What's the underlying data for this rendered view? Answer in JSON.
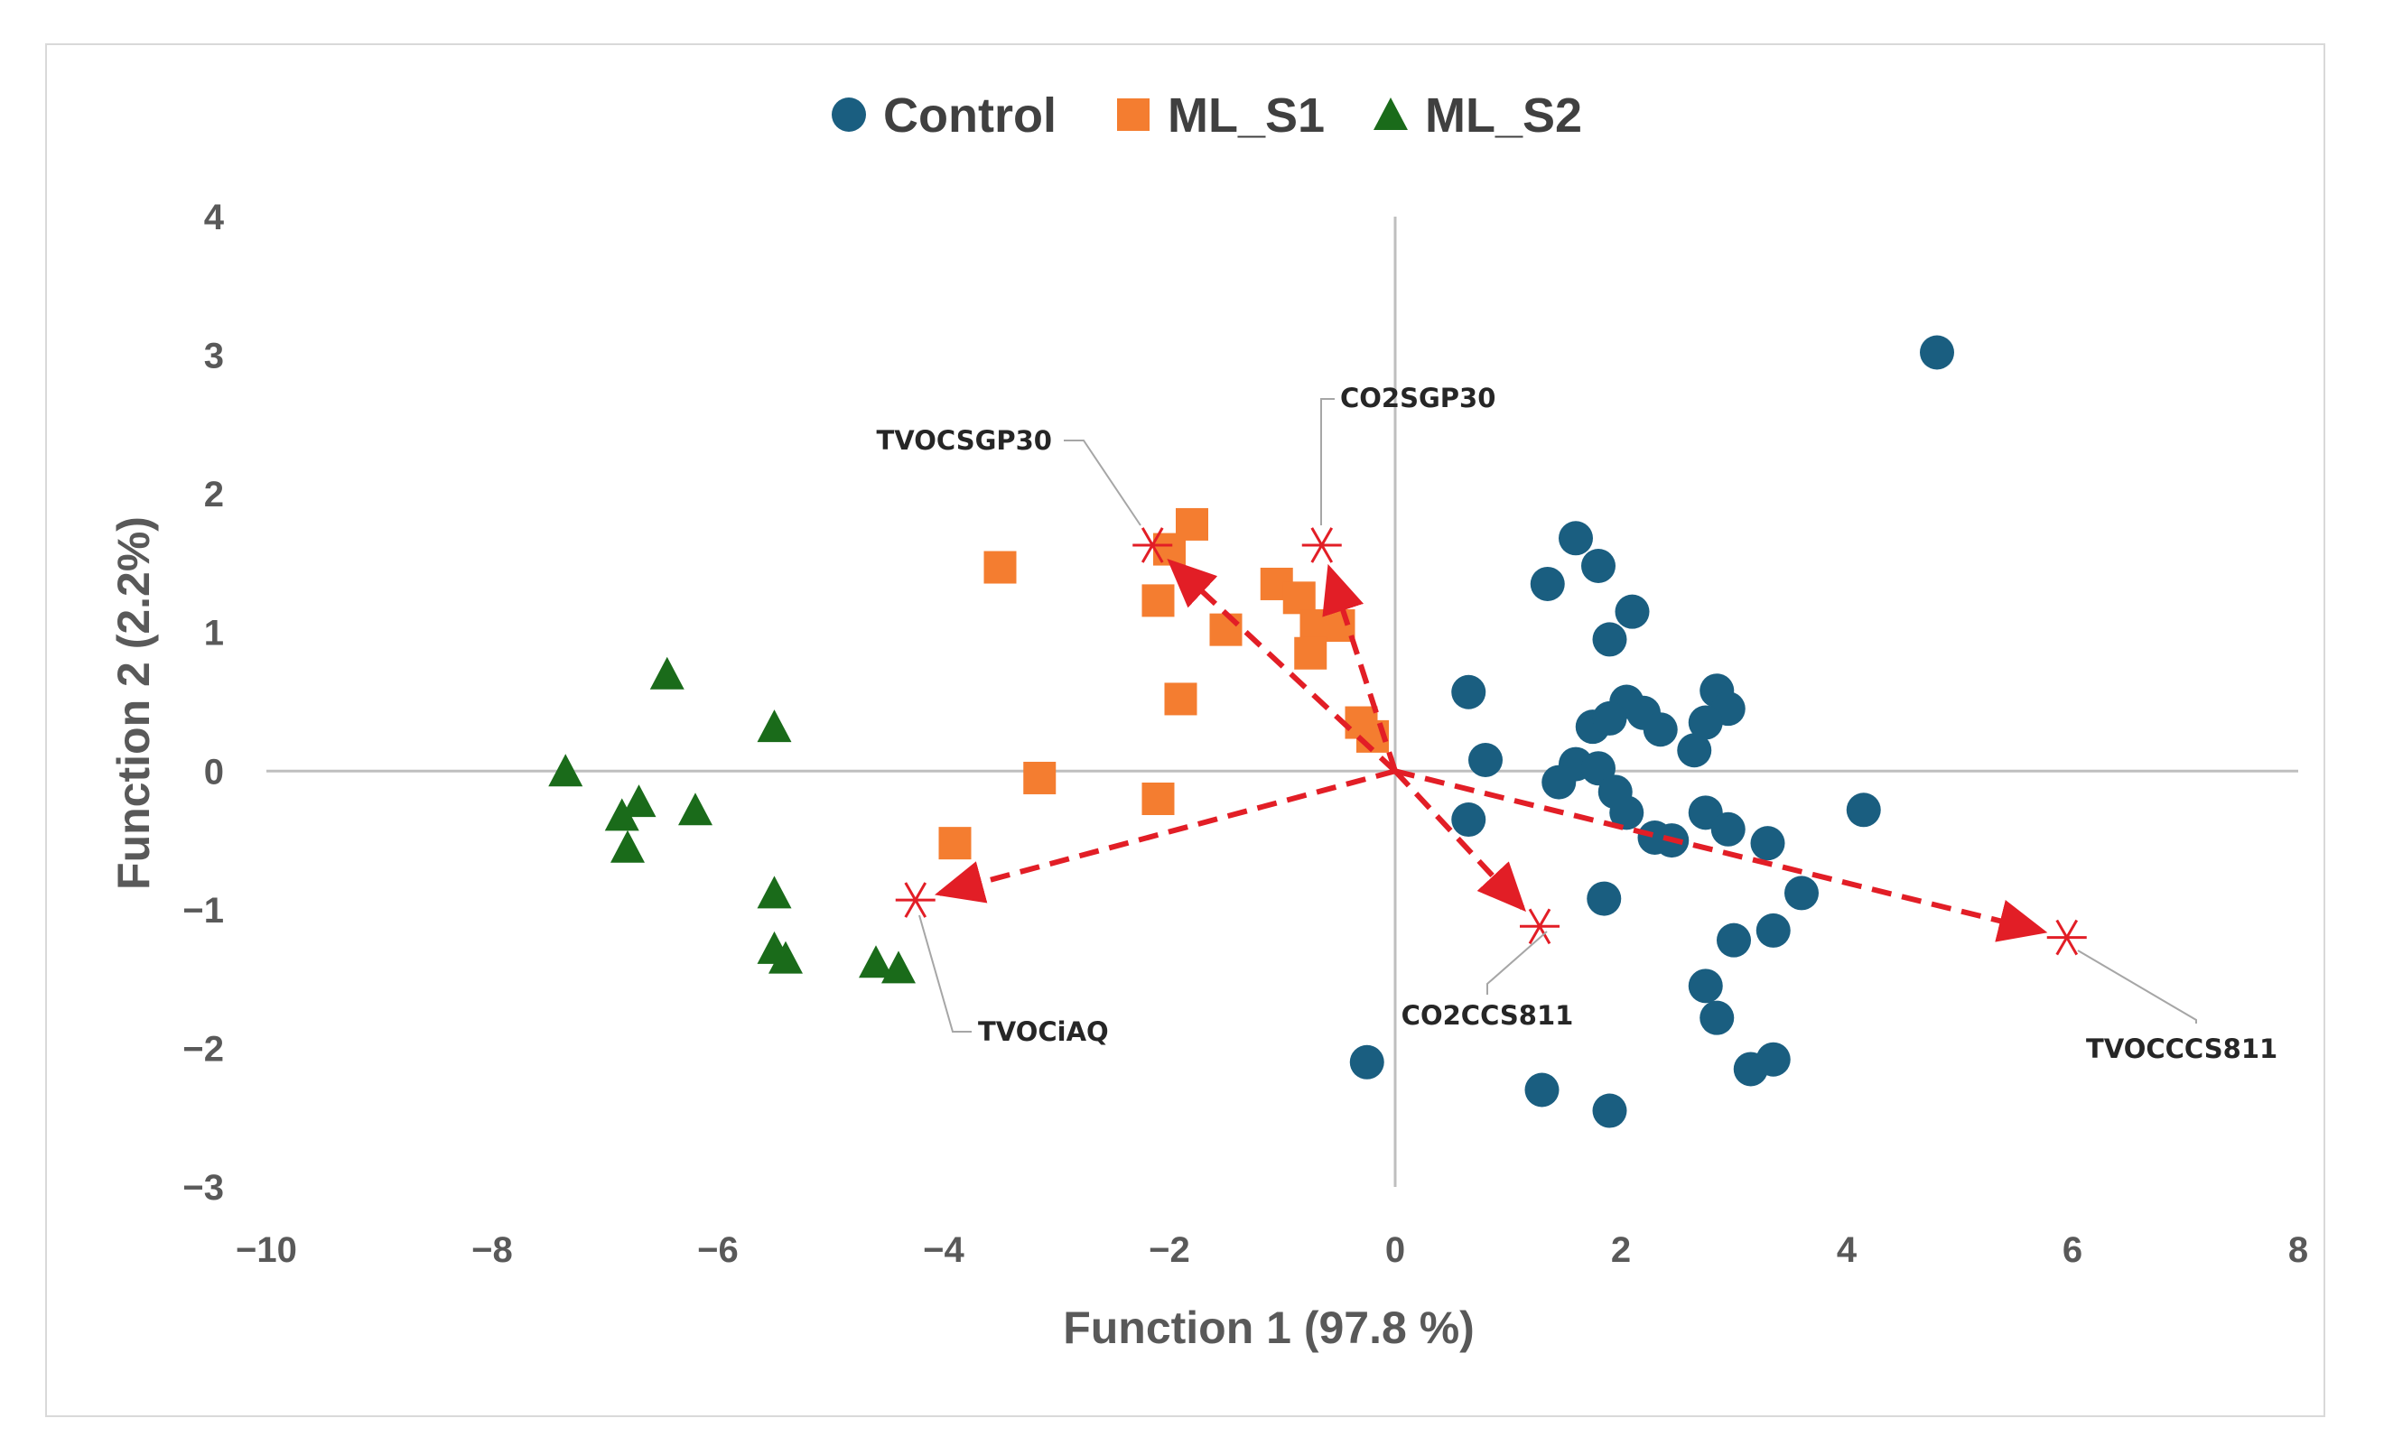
{
  "chart_data": {
    "type": "scatter",
    "xlabel": "Function 1 (97.8 %)",
    "ylabel": "Function 2 (2.2%)",
    "xlim": [
      -10,
      8
    ],
    "ylim": [
      -3,
      4
    ],
    "xticks": [
      -10,
      -8,
      -6,
      -4,
      -2,
      0,
      2,
      4,
      6,
      8
    ],
    "yticks": [
      -3,
      -2,
      -1,
      0,
      1,
      2,
      3,
      4
    ],
    "xtick_labels": [
      "−10",
      "−8",
      "−6",
      "−4",
      "−2",
      "0",
      "2",
      "4",
      "6",
      "8"
    ],
    "ytick_labels": [
      "−3",
      "−2",
      "−1",
      "0",
      "1",
      "2",
      "3",
      "4"
    ],
    "grid": false,
    "legend_position": "top",
    "series": [
      {
        "name": "Control",
        "marker": "circle",
        "color": "#1a5e80",
        "points": [
          [
            4.8,
            3.02
          ],
          [
            1.6,
            1.68
          ],
          [
            1.8,
            1.48
          ],
          [
            1.35,
            1.35
          ],
          [
            2.1,
            1.15
          ],
          [
            1.9,
            0.95
          ],
          [
            0.65,
            0.57
          ],
          [
            2.05,
            0.5
          ],
          [
            2.2,
            0.42
          ],
          [
            1.75,
            0.32
          ],
          [
            1.9,
            0.38
          ],
          [
            2.35,
            0.3
          ],
          [
            2.85,
            0.58
          ],
          [
            2.95,
            0.45
          ],
          [
            2.75,
            0.35
          ],
          [
            2.65,
            0.15
          ],
          [
            0.8,
            0.08
          ],
          [
            1.6,
            0.05
          ],
          [
            1.8,
            0.02
          ],
          [
            1.45,
            -0.08
          ],
          [
            1.95,
            -0.15
          ],
          [
            2.05,
            -0.3
          ],
          [
            0.65,
            -0.35
          ],
          [
            2.75,
            -0.3
          ],
          [
            2.95,
            -0.42
          ],
          [
            3.3,
            -0.52
          ],
          [
            2.3,
            -0.48
          ],
          [
            2.45,
            -0.5
          ],
          [
            4.15,
            -0.28
          ],
          [
            3.6,
            -0.88
          ],
          [
            1.85,
            -0.92
          ],
          [
            3.0,
            -1.22
          ],
          [
            3.35,
            -1.15
          ],
          [
            2.75,
            -1.55
          ],
          [
            2.85,
            -1.78
          ],
          [
            -0.25,
            -2.1
          ],
          [
            1.3,
            -2.3
          ],
          [
            1.9,
            -2.45
          ],
          [
            3.15,
            -2.15
          ],
          [
            3.35,
            -2.08
          ]
        ]
      },
      {
        "name": "ML_S1",
        "marker": "square",
        "color": "#f47d30",
        "points": [
          [
            -3.5,
            1.47
          ],
          [
            -1.8,
            1.78
          ],
          [
            -2.0,
            1.6
          ],
          [
            -2.1,
            1.23
          ],
          [
            -1.5,
            1.02
          ],
          [
            -1.05,
            1.35
          ],
          [
            -0.85,
            1.25
          ],
          [
            -0.7,
            1.05
          ],
          [
            -0.5,
            1.05
          ],
          [
            -0.75,
            0.85
          ],
          [
            -0.3,
            0.35
          ],
          [
            -0.2,
            0.25
          ],
          [
            -1.9,
            0.52
          ],
          [
            -3.15,
            -0.05
          ],
          [
            -2.1,
            -0.2
          ],
          [
            -3.9,
            -0.52
          ]
        ]
      },
      {
        "name": "ML_S2",
        "marker": "triangle",
        "color": "#1a6b1a",
        "points": [
          [
            -6.45,
            0.7
          ],
          [
            -5.5,
            0.32
          ],
          [
            -7.35,
            0.0
          ],
          [
            -6.7,
            -0.22
          ],
          [
            -6.85,
            -0.32
          ],
          [
            -6.2,
            -0.28
          ],
          [
            -6.8,
            -0.55
          ],
          [
            -5.5,
            -0.88
          ],
          [
            -5.5,
            -1.28
          ],
          [
            -5.4,
            -1.35
          ],
          [
            -4.6,
            -1.38
          ],
          [
            -4.4,
            -1.42
          ]
        ]
      }
    ],
    "loadings": [
      {
        "label": "TVOCSGP30",
        "x": -2.15,
        "y": 1.63
      },
      {
        "label": "CO2SGP30",
        "x": -0.65,
        "y": 1.63
      },
      {
        "label": "TVOCiAQ",
        "x": -4.25,
        "y": -0.93
      },
      {
        "label": "CO2CCS811",
        "x": 1.28,
        "y": -1.12
      },
      {
        "label": "TVOCCCS811",
        "x": 5.95,
        "y": -1.2
      }
    ],
    "loading_color": "#e21e26"
  }
}
